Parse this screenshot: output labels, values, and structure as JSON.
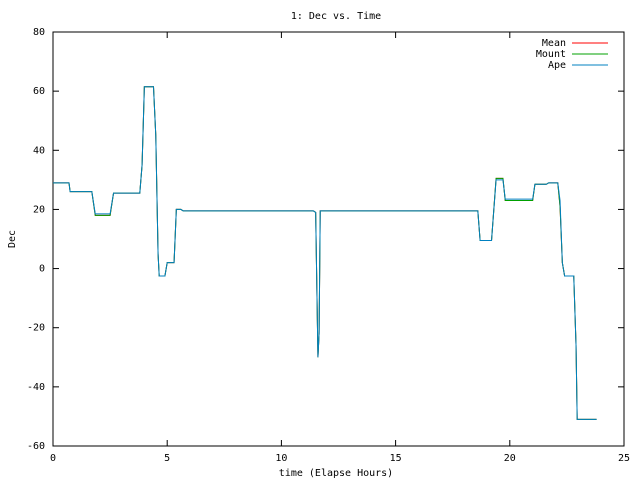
{
  "chart_data": {
    "type": "line",
    "title": "1: Dec vs. Time",
    "x_label": "time (Elapse Hours)",
    "y_label": "Dec",
    "x": [
      0,
      0.7,
      0.75,
      1.7,
      1.85,
      2.5,
      2.65,
      3.8,
      3.9,
      4.0,
      4.4,
      4.5,
      4.6,
      4.65,
      4.9,
      5.0,
      5.3,
      5.4,
      5.6,
      5.7,
      11.4,
      11.5,
      11.6,
      11.65,
      11.7,
      18.6,
      18.7,
      19.2,
      19.4,
      19.7,
      19.8,
      21.0,
      21.1,
      21.6,
      21.7,
      22.1,
      22.2,
      22.3,
      22.4,
      22.8,
      22.9,
      22.95,
      23.8
    ],
    "series": [
      {
        "name": "Mean",
        "color": "#ff0000",
        "values": [
          29,
          29,
          26,
          26,
          18,
          18,
          25.5,
          25.5,
          35,
          61.5,
          61.5,
          45,
          5,
          -2.5,
          -2.5,
          2,
          2,
          20,
          20,
          19.5,
          19.5,
          19,
          -30,
          -22,
          19.5,
          19.5,
          9.5,
          9.5,
          30.5,
          30.5,
          23,
          23,
          28.5,
          28.5,
          29,
          29,
          21,
          2,
          -2.5,
          -2.5,
          -26,
          -51,
          -51
        ]
      },
      {
        "name": "Mount",
        "color": "#00a000",
        "values": [
          29,
          29,
          26,
          26,
          18,
          18,
          25.5,
          25.5,
          35,
          61.5,
          61.5,
          45,
          5,
          -2.5,
          -2.5,
          2,
          2,
          20,
          20,
          19.5,
          19.5,
          19,
          -30,
          -22,
          19.5,
          19.5,
          9.5,
          9.5,
          30.5,
          30.5,
          23,
          23,
          28.5,
          28.5,
          29,
          29,
          21,
          2,
          -2.5,
          -2.5,
          -26,
          -51,
          -51
        ]
      },
      {
        "name": "Ape",
        "color": "#0080c0",
        "values": [
          29,
          29,
          26,
          26,
          18.5,
          18.5,
          25.5,
          25.5,
          35,
          61.5,
          61.5,
          45,
          5,
          -2.5,
          -2.5,
          2,
          2,
          20,
          20,
          19.5,
          19.5,
          19,
          -30,
          -22,
          19.5,
          19.5,
          9.5,
          9.5,
          30,
          30,
          23.5,
          23.5,
          28.5,
          28.5,
          29,
          29,
          23,
          2,
          -2.5,
          -2.5,
          -26,
          -51,
          -51
        ]
      }
    ],
    "xlim": [
      0,
      25
    ],
    "xticks": [
      0,
      5,
      10,
      15,
      20,
      25
    ],
    "ylim": [
      -60,
      80
    ],
    "yticks": [
      -60,
      -40,
      -20,
      0,
      20,
      40,
      60,
      80
    ],
    "legend": "upper right"
  }
}
